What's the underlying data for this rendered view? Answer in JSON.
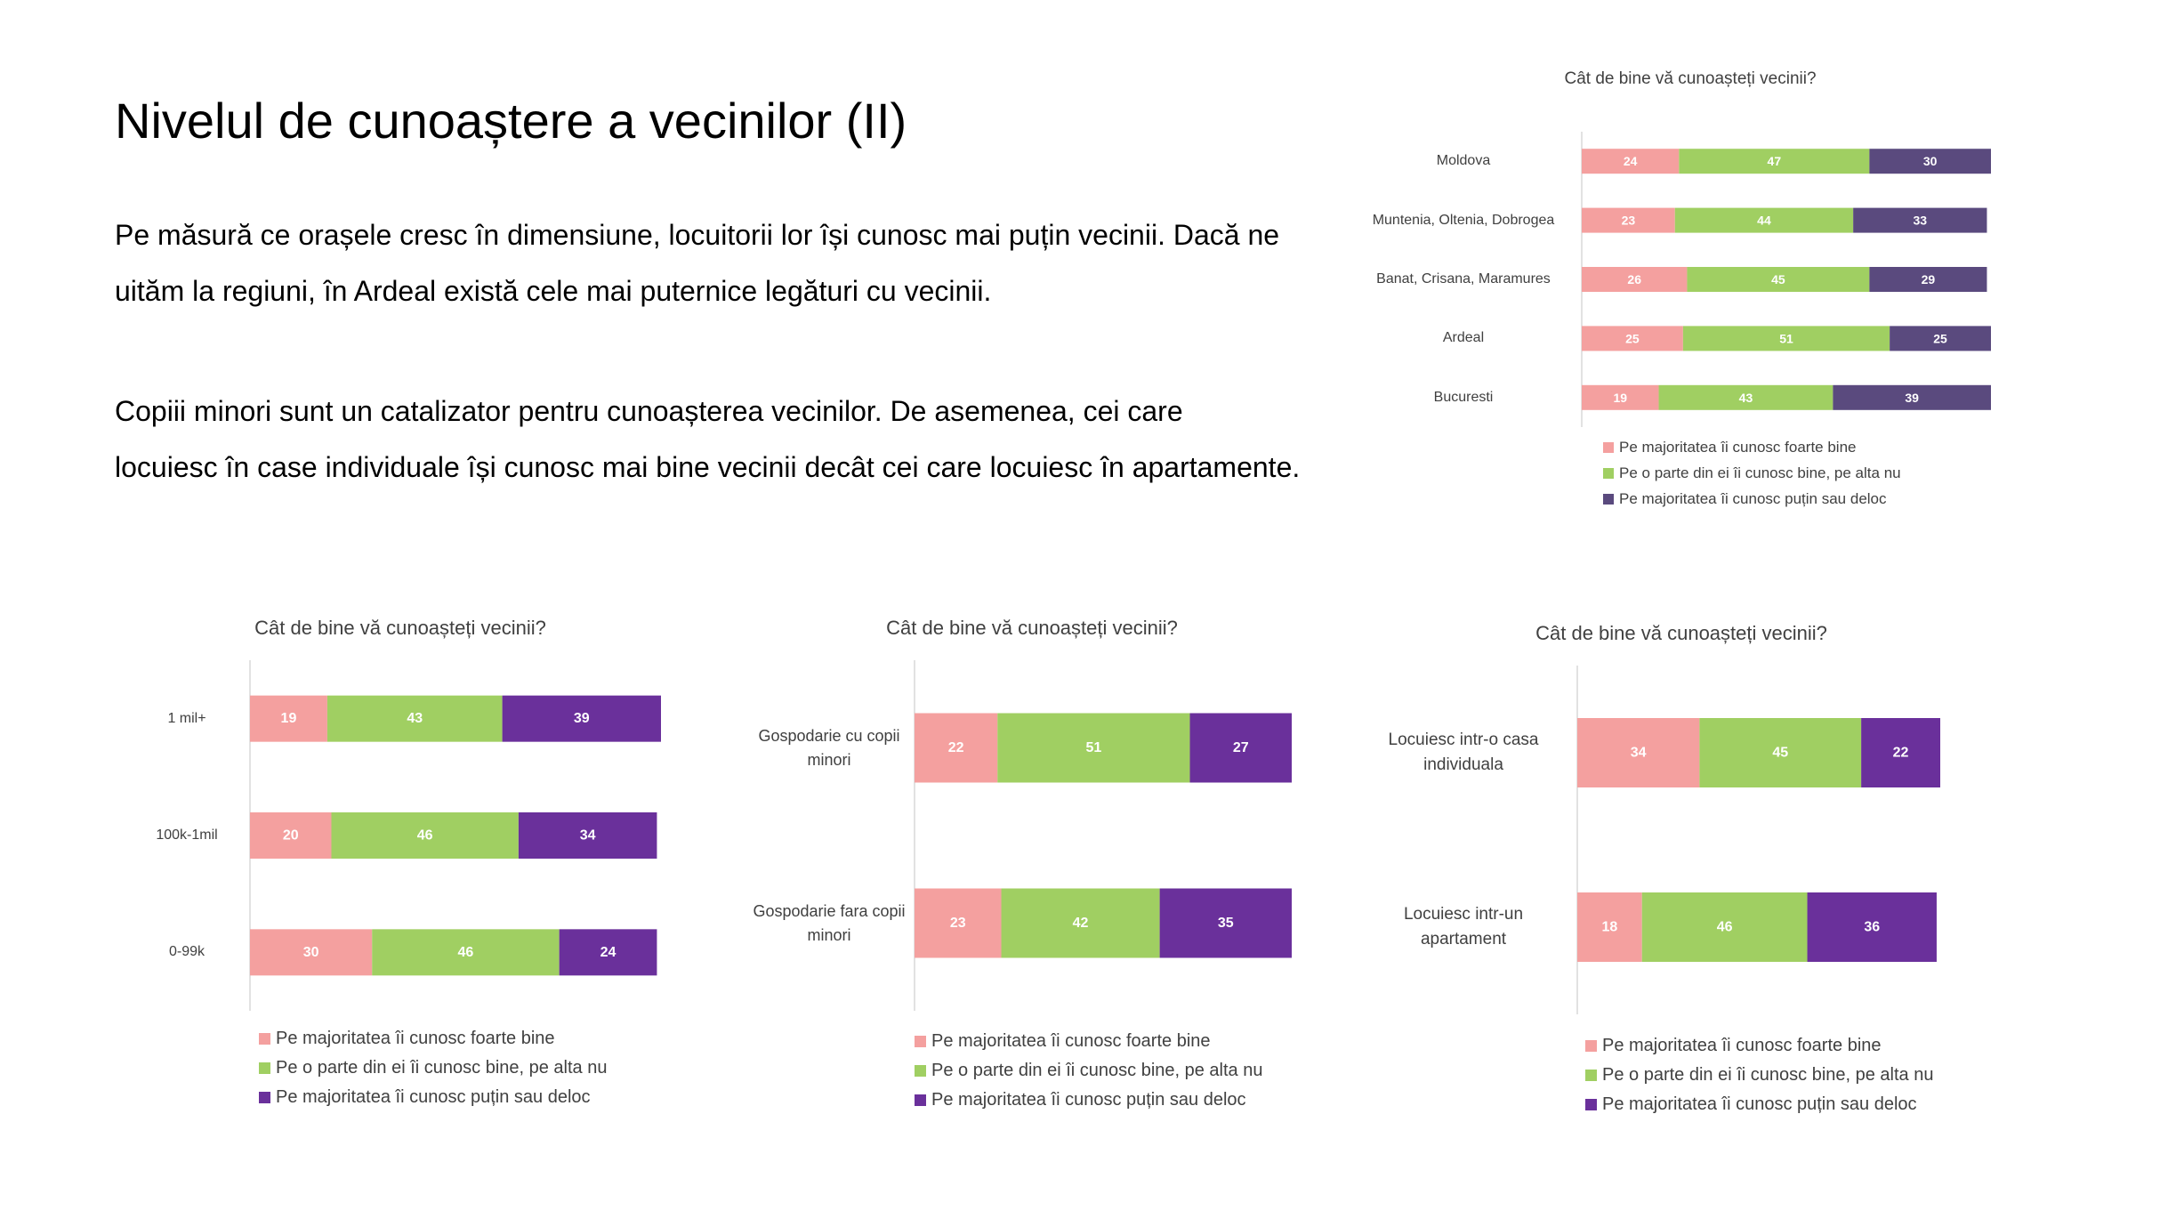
{
  "slide": {
    "title": "Nivelul de cunoaștere a vecinilor (II)",
    "paragraph1": [
      "Pe măsură ce orașele cresc în dimensiune, locuitorii lor își cunosc mai puțin vecinii. Dacă ne",
      "uităm la regiuni, în Ardeal  există cele mai puternice legături cu vecinii."
    ],
    "paragraph2": [
      "Copiii minori sunt un catalizator pentru cunoașterea vecinilor. De asemenea, cei care",
      "locuiesc în case individuale își cunosc mai bine vecinii decât cei care locuiesc în apartamente."
    ]
  },
  "chart_data": [
    {
      "id": "region",
      "type": "bar",
      "stacked": true,
      "orientation": "horizontal",
      "title": "Cât de bine vă cunoașteți vecinii?",
      "categories": [
        "Moldova",
        "Muntenia, Oltenia, Dobrogea",
        "Banat, Crisana, Maramures",
        "Ardeal",
        "Bucuresti"
      ],
      "series": [
        {
          "name": "Pe majoritatea îi cunosc foarte bine",
          "color": "#f4a09f",
          "values": [
            24,
            23,
            26,
            25,
            19
          ]
        },
        {
          "name": "Pe o parte din ei îi cunosc bine, pe alta nu",
          "color": "#a0cf62",
          "values": [
            47,
            44,
            45,
            51,
            43
          ]
        },
        {
          "name": "Pe majoritatea îi cunosc puțin sau deloc",
          "color": "#5a4a7e",
          "values": [
            30,
            33,
            29,
            25,
            39
          ]
        }
      ],
      "legend_position": "bottom"
    },
    {
      "id": "city_size",
      "type": "bar",
      "stacked": true,
      "orientation": "horizontal",
      "title": "Cât de bine vă cunoașteți vecinii?",
      "categories": [
        "1 mil+",
        "100k-1mil",
        "0-99k"
      ],
      "series": [
        {
          "name": "Pe majoritatea îi cunosc foarte bine",
          "color": "#f4a09f",
          "values": [
            19,
            20,
            30
          ]
        },
        {
          "name": "Pe o parte din ei îi cunosc bine, pe alta nu",
          "color": "#a0cf62",
          "values": [
            43,
            46,
            46
          ]
        },
        {
          "name": "Pe majoritatea îi cunosc puțin sau deloc",
          "color": "#6a309b",
          "values": [
            39,
            34,
            24
          ]
        }
      ],
      "legend_position": "bottom"
    },
    {
      "id": "household",
      "type": "bar",
      "stacked": true,
      "orientation": "horizontal",
      "title": "Cât de bine vă cunoașteți vecinii?",
      "categories": [
        "Gospodarie cu copii minori",
        "Gospodarie fara copii minori"
      ],
      "series": [
        {
          "name": "Pe majoritatea îi cunosc foarte bine",
          "color": "#f4a09f",
          "values": [
            22,
            23
          ]
        },
        {
          "name": "Pe o parte din ei îi cunosc bine, pe alta nu",
          "color": "#a0cf62",
          "values": [
            51,
            42
          ]
        },
        {
          "name": "Pe majoritatea îi cunosc puțin sau deloc",
          "color": "#6a309b",
          "values": [
            27,
            35
          ]
        }
      ],
      "legend_position": "bottom"
    },
    {
      "id": "housing",
      "type": "bar",
      "stacked": true,
      "orientation": "horizontal",
      "title": "Cât de bine vă cunoașteți vecinii?",
      "categories": [
        "Locuiesc intr-o casa individuala",
        "Locuiesc intr-un apartament"
      ],
      "series": [
        {
          "name": "Pe majoritatea îi cunosc foarte bine",
          "color": "#f4a09f",
          "values": [
            34,
            18
          ]
        },
        {
          "name": "Pe o parte din ei îi cunosc bine, pe alta nu",
          "color": "#a0cf62",
          "values": [
            45,
            46
          ]
        },
        {
          "name": "Pe majoritatea îi cunosc puțin sau deloc",
          "color": "#6a309b",
          "values": [
            22,
            36
          ]
        }
      ],
      "legend_position": "bottom"
    }
  ]
}
